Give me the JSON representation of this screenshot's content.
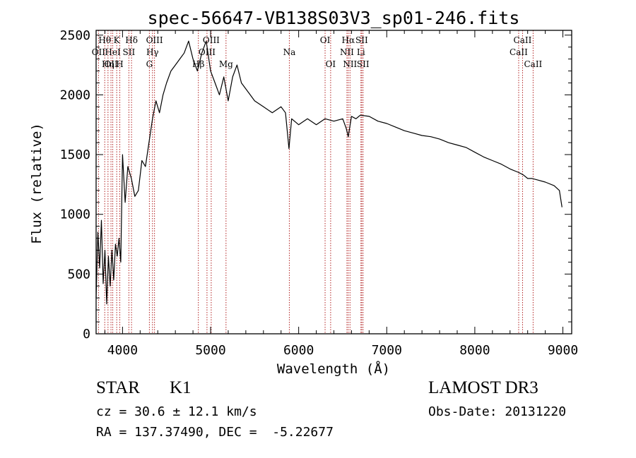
{
  "chart_data": {
    "type": "line",
    "title": "spec-56647-VB138S03V3_sp01-246.fits",
    "xlabel": "Wavelength (Å)",
    "ylabel": "Flux (relative)",
    "xlim": [
      3700,
      9100
    ],
    "ylim": [
      0,
      2540
    ],
    "x_ticks": [
      "4000",
      "5000",
      "6000",
      "7000",
      "8000",
      "9000"
    ],
    "y_ticks": [
      "0",
      "500",
      "1000",
      "1500",
      "2000",
      "2500"
    ],
    "series": [
      {
        "x": [
          3700,
          3720,
          3740,
          3760,
          3780,
          3800,
          3820,
          3840,
          3860,
          3880,
          3900,
          3920,
          3940,
          3960,
          3980,
          4000,
          4030,
          4060,
          4100,
          4140,
          4180,
          4220,
          4260,
          4300,
          4340,
          4380,
          4420,
          4460,
          4500,
          4550,
          4600,
          4650,
          4700,
          4750,
          4800,
          4850,
          4900,
          4950,
          5000,
          5050,
          5100,
          5150,
          5200,
          5250,
          5300,
          5350,
          5400,
          5450,
          5500,
          5600,
          5700,
          5800,
          5850,
          5890,
          5920,
          6000,
          6100,
          6200,
          6300,
          6400,
          6500,
          6540,
          6563,
          6600,
          6650,
          6700,
          6800,
          6900,
          7000,
          7100,
          7200,
          7300,
          7400,
          7500,
          7600,
          7700,
          7800,
          7900,
          8000,
          8100,
          8200,
          8300,
          8400,
          8500,
          8550,
          8600,
          8650,
          8700,
          8800,
          8900,
          8960,
          8990
        ],
        "y": [
          300,
          850,
          550,
          950,
          420,
          700,
          250,
          650,
          400,
          700,
          450,
          750,
          650,
          800,
          600,
          1500,
          1100,
          1400,
          1300,
          1150,
          1200,
          1450,
          1400,
          1600,
          1800,
          1950,
          1850,
          2000,
          2100,
          2200,
          2250,
          2300,
          2350,
          2450,
          2300,
          2200,
          2350,
          2450,
          2200,
          2100,
          2000,
          2150,
          1950,
          2150,
          2250,
          2100,
          2050,
          2000,
          1950,
          1900,
          1850,
          1900,
          1850,
          1550,
          1800,
          1750,
          1800,
          1750,
          1800,
          1780,
          1800,
          1720,
          1650,
          1820,
          1800,
          1830,
          1820,
          1780,
          1760,
          1730,
          1700,
          1680,
          1660,
          1650,
          1630,
          1600,
          1580,
          1560,
          1520,
          1480,
          1450,
          1420,
          1380,
          1350,
          1330,
          1300,
          1300,
          1290,
          1270,
          1240,
          1200,
          1060
        ]
      }
    ],
    "lines": [
      {
        "w": 3727,
        "label": "OII",
        "row": 1
      },
      {
        "w": 3798,
        "label": "Hθ",
        "row": 0
      },
      {
        "w": 3835,
        "label": "Hη",
        "row": 2
      },
      {
        "w": 3869,
        "label": "OII",
        "row": 2
      },
      {
        "w": 3889,
        "label": "HeI",
        "row": 1
      },
      {
        "w": 3934,
        "label": "K",
        "row": 0
      },
      {
        "w": 3969,
        "label": "H",
        "row": 2
      },
      {
        "w": 4072,
        "label": "SII",
        "row": 1
      },
      {
        "w": 4102,
        "label": "Hδ",
        "row": 0
      },
      {
        "w": 4305,
        "label": "G",
        "row": 2
      },
      {
        "w": 4340,
        "label": "Hγ",
        "row": 1
      },
      {
        "w": 4363,
        "label": "OIII",
        "row": 0
      },
      {
        "w": 4861,
        "label": "Hβ",
        "row": 2
      },
      {
        "w": 4959,
        "label": "OIII",
        "row": 1
      },
      {
        "w": 5007,
        "label": "OIII",
        "row": 0
      },
      {
        "w": 5175,
        "label": "Mg",
        "row": 2
      },
      {
        "w": 5894,
        "label": "Na",
        "row": 1
      },
      {
        "w": 6300,
        "label": "OI",
        "row": 0
      },
      {
        "w": 6363,
        "label": "OI",
        "row": 2
      },
      {
        "w": 6548,
        "label": "NII",
        "row": 1
      },
      {
        "w": 6563,
        "label": "Hα",
        "row": 0
      },
      {
        "w": 6583,
        "label": "NII",
        "row": 2
      },
      {
        "w": 6707,
        "label": "Li",
        "row": 1
      },
      {
        "w": 6716,
        "label": "SII",
        "row": 0
      },
      {
        "w": 6731,
        "label": "SII",
        "row": 2
      },
      {
        "w": 8498,
        "label": "CaII",
        "row": 1
      },
      {
        "w": 8542,
        "label": "CaII",
        "row": 0
      },
      {
        "w": 8662,
        "label": "CaII",
        "row": 2
      }
    ]
  },
  "info": {
    "class": "STAR",
    "subclass": "K1",
    "cz": "cz = 30.6 ± 12.1 km/s",
    "radec": "RA = 137.37490, DEC =  -5.22677",
    "survey": "LAMOST DR3",
    "obsdate": "Obs-Date: 20131220"
  },
  "colors": {
    "line_marker": "#b22222",
    "spectrum": "#000000"
  }
}
